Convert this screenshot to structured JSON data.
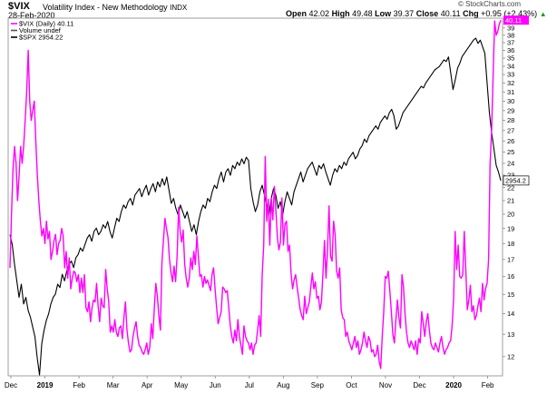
{
  "header": {
    "symbol": "$VIX",
    "name": "Volatility Index - New Methodology",
    "exchange": "INDX",
    "date": "28-Feb-2020",
    "open_label": "Open",
    "open": "42.02",
    "high_label": "High",
    "high": "49.48",
    "low_label": "Low",
    "low": "39.37",
    "close_label": "Close",
    "close": "40.11",
    "chg_label": "Chg",
    "chg": "+0.95 (+2.43%)",
    "chg_arrow": "▲",
    "credit": "© StockCharts.com"
  },
  "legend": [
    {
      "label": "$VIX (Daily) 40.11",
      "color": "#ff00ff"
    },
    {
      "label": "Volume undef",
      "color": "#555555"
    },
    {
      "label": "$SPX 2954.22",
      "color": "#000000"
    }
  ],
  "badges": {
    "vix": "40.11",
    "spx": "2954.2"
  },
  "chart_data": {
    "type": "line",
    "x_ticks": [
      "Dec",
      "2019",
      "Feb",
      "Mar",
      "Apr",
      "May",
      "Jun",
      "Jul",
      "Aug",
      "Sep",
      "Oct",
      "Nov",
      "Dec",
      "2020",
      "Feb"
    ],
    "x_tick_bold": [
      "2019",
      "2020"
    ],
    "y_ticks": [
      12,
      13,
      14,
      15,
      16,
      17,
      18,
      19,
      20,
      21,
      22,
      23,
      24,
      25,
      26,
      27,
      28,
      29,
      30,
      31,
      32,
      33,
      34,
      35,
      36,
      37,
      38,
      39
    ],
    "ylim": [
      11.2,
      40.4
    ],
    "y_scale": "log",
    "grid": false,
    "legend_position": "top-left",
    "series": [
      {
        "name": "$VIX (Daily) 40.11",
        "color": "#ff00ff",
        "axis": "right",
        "values": [
          16.5,
          20,
          23.5,
          25.5,
          24,
          21,
          23,
          25.5,
          24,
          25.5,
          28,
          31,
          36,
          30,
          28,
          29,
          30,
          26,
          23,
          21,
          19.5,
          18.5,
          19,
          18,
          19.5,
          18.3,
          18.8,
          17,
          17.5,
          18.2,
          18.6,
          17.3,
          18,
          18.2,
          19,
          18.5,
          16.5,
          17.5,
          15.9,
          17.1,
          15.3,
          15.9,
          16.3,
          16.2,
          15.7,
          16.1,
          15.1,
          15.9,
          15.1,
          16.1,
          14.3,
          14.1,
          14.6,
          13.6,
          14.3,
          14.7,
          14.6,
          15.6,
          14.4,
          13.6,
          14.8,
          14.4,
          14.3,
          16.4,
          15.3,
          14.6,
          13.1,
          13.4,
          13.1,
          13.7,
          13.1,
          12.9,
          13.3,
          13.4,
          12.8,
          13.8,
          14.6,
          13.2,
          12.6,
          12.2,
          12.3,
          12.9,
          13.3,
          13.6,
          12.9,
          12.5,
          12.4,
          12.2,
          12.1,
          12.3,
          12.6,
          12.1,
          12.4,
          13.5,
          12.8,
          14.3,
          15.6,
          14.9,
          13.9,
          13.2,
          16.8,
          18.2,
          19.7,
          19,
          18.4,
          17,
          16.2,
          15.7,
          16.6,
          15.7,
          17.2,
          20.5,
          18.8,
          18.1,
          18.9,
          16.7,
          15.9,
          15.4,
          15.9,
          17.1,
          16.4,
          17.5,
          16.7,
          18.5,
          17.2,
          16,
          16.1,
          15.4,
          16,
          15.6,
          15.8,
          15.5,
          15.2,
          16.1,
          16.5,
          15.3,
          14.3,
          13.5,
          13.8,
          14.1,
          15.4,
          15.3,
          15.1,
          15.2,
          14.3,
          13.4,
          12.9,
          12.6,
          13.2,
          12.7,
          13.7,
          12.9,
          12.5,
          12.1,
          13.4,
          12.9,
          12.7,
          12.6,
          12.3,
          12.6,
          12.1,
          12.5,
          12.6,
          13.2,
          13.9,
          12.9,
          16.1,
          17.9,
          24.6,
          19.5,
          21.1,
          17.9,
          21.2,
          19.6,
          22.1,
          20.3,
          18.4,
          17.6,
          18.1,
          21.2,
          17.9,
          19.3,
          19.5,
          17.5,
          17.9,
          16.2,
          15.3,
          15.8,
          16.1,
          15.4,
          14.8,
          14.2,
          13.9,
          13.7,
          14.9,
          14,
          14.3,
          14.6,
          15.4,
          16.2,
          15.3,
          15.7,
          14.8,
          14.9,
          14.2,
          14.6,
          16.2,
          18.2,
          15.9,
          17.6,
          20.6,
          17.2,
          16.9,
          19.5,
          18.6,
          16.3,
          15.9,
          16.5,
          14.2,
          13.8,
          13.7,
          12.9,
          13.1,
          12.7,
          12.5,
          12.3,
          12.6,
          12.9,
          12.4,
          12.7,
          12.1,
          12.3,
          12.6,
          13.1,
          12.7,
          12.4,
          12.9,
          12.7,
          12.2,
          12.3,
          12,
          12.1,
          12.5,
          11.8,
          11.5,
          12.9,
          14.1,
          16,
          15.9,
          16.3,
          15.2,
          14.1,
          13,
          12.6,
          13.7,
          14.7,
          13.8,
          13.3,
          16.1,
          15.4,
          14,
          13.1,
          12.6,
          12.4,
          12.7,
          12.5,
          12.3,
          12.7,
          12.1,
          12.8,
          12.6,
          14.1,
          13.5,
          12.9,
          13.6,
          14,
          13.2,
          12.6,
          12.4,
          12.3,
          12.6,
          12.4,
          12.2,
          12.6,
          12.9,
          12.4,
          12.1,
          12.3,
          12.4,
          12.6,
          12.7,
          13.4,
          14.8,
          18.8,
          16.4,
          17.9,
          16,
          15.9,
          16.1,
          18.8,
          16.4,
          14.2,
          14.7,
          15.5,
          14.1,
          14.4,
          13.7,
          13.9,
          14.4,
          14.8,
          14.1,
          15.6,
          14.7,
          15.3,
          15.6,
          17,
          24,
          27,
          33,
          40,
          38,
          38.5,
          39.5,
          40.11
        ],
        "last": 40.11
      },
      {
        "name": "$SPX 2954.22",
        "color": "#000000",
        "axis": "none",
        "values": [
          2790,
          2760,
          2700,
          2650,
          2600,
          2640,
          2580,
          2600,
          2560,
          2540,
          2510,
          2480,
          2416,
          2351,
          2460,
          2500,
          2530,
          2550,
          2580,
          2600,
          2610,
          2640,
          2630,
          2670,
          2650,
          2680,
          2700,
          2710,
          2690,
          2720,
          2730,
          2750,
          2740,
          2760,
          2780,
          2790,
          2770,
          2800,
          2810,
          2790,
          2800,
          2820,
          2810,
          2830,
          2800,
          2780,
          2810,
          2840,
          2830,
          2860,
          2880,
          2870,
          2890,
          2900,
          2880,
          2910,
          2920,
          2930,
          2905,
          2925,
          2940,
          2910,
          2930,
          2945,
          2920,
          2950,
          2935,
          2960,
          2940,
          2965,
          2925,
          2885,
          2900,
          2870,
          2850,
          2880,
          2860,
          2840,
          2860,
          2830,
          2800,
          2820,
          2790,
          2830,
          2860,
          2880,
          2870,
          2900,
          2890,
          2920,
          2940,
          2930,
          2960,
          2980,
          2950,
          2980,
          2990,
          2970,
          3000,
          2990,
          3010,
          3000,
          3020,
          3005,
          3025,
          3015,
          2930,
          2890,
          2860,
          2880,
          2920,
          2940,
          2910,
          2880,
          2850,
          2900,
          2930,
          2910,
          2870,
          2890,
          2850,
          2890,
          2920,
          2900,
          2880,
          2920,
          2940,
          2960,
          2980,
          2950,
          2970,
          2990,
          3000,
          3010,
          2990,
          2970,
          3000,
          2990,
          3005,
          2980,
          2960,
          2940,
          2970,
          2990,
          2980,
          3000,
          2990,
          3010,
          3000,
          3020,
          3030,
          3040,
          3020,
          3030,
          3050,
          3060,
          3080,
          3070,
          3090,
          3100,
          3110,
          3120,
          3110,
          3130,
          3140,
          3150,
          3140,
          3160,
          3170,
          3150,
          3110,
          3120,
          3140,
          3160,
          3170,
          3180,
          3190,
          3200,
          3210,
          3220,
          3230,
          3240,
          3235,
          3250,
          3260,
          3270,
          3280,
          3290,
          3295,
          3300,
          3310,
          3320,
          3315,
          3329,
          3280,
          3230,
          3260,
          3295,
          3310,
          3330,
          3340,
          3350,
          3360,
          3370,
          3380,
          3386,
          3370,
          3380,
          3360,
          3340,
          3250,
          3160,
          3100,
          3050,
          3000,
          2980,
          2954.22
        ],
        "last": 2954.22
      }
    ]
  }
}
